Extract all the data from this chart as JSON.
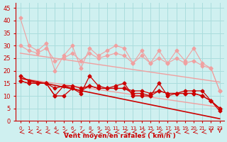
{
  "x": [
    0,
    1,
    2,
    3,
    4,
    5,
    6,
    7,
    8,
    9,
    10,
    11,
    12,
    13,
    14,
    15,
    16,
    17,
    18,
    19,
    20,
    21,
    22,
    23
  ],
  "line_light1": [
    41,
    30,
    28,
    31,
    20,
    26,
    30,
    21,
    29,
    26,
    28,
    30,
    29,
    23,
    28,
    23,
    28,
    23,
    28,
    24,
    29,
    23,
    21,
    12
  ],
  "line_light2": [
    30,
    28,
    27,
    29,
    24,
    25,
    27,
    24,
    27,
    25,
    26,
    27,
    26,
    23,
    26,
    23,
    25,
    23,
    25,
    23,
    24,
    22,
    21,
    12
  ],
  "line_light3_slope": [
    27,
    26.5,
    26,
    25.5,
    25,
    24.5,
    24,
    23.5,
    23,
    22.5,
    22,
    21.5,
    21,
    20.5,
    20,
    19.5,
    19,
    18.5,
    18,
    17.5,
    17,
    16.5,
    16,
    15.5
  ],
  "line_light4_slope": [
    17,
    16.5,
    16,
    15.5,
    15,
    14.5,
    14,
    13.5,
    13,
    12.5,
    12,
    11.5,
    11,
    10.5,
    10,
    9.5,
    9,
    8.5,
    8,
    7.5,
    7,
    6.5,
    6,
    5.5
  ],
  "line_dark1": [
    18,
    16,
    15,
    15,
    10,
    10,
    13,
    11,
    18,
    14,
    13,
    14,
    15,
    10,
    10,
    10,
    15,
    10,
    11,
    12,
    12,
    12,
    8,
    4
  ],
  "line_dark2": [
    16,
    15,
    15,
    15,
    10,
    14,
    13,
    12,
    14,
    13,
    13,
    13,
    13,
    11,
    11,
    10,
    12,
    11,
    11,
    11,
    11,
    10,
    8,
    5
  ],
  "line_dark3": [
    16,
    15,
    15,
    15,
    13,
    14,
    14,
    13,
    14,
    13,
    13,
    13,
    13,
    12,
    12,
    11,
    12,
    11,
    11,
    11,
    11,
    10,
    8,
    5
  ],
  "line_dark4_slope": [
    17,
    16.3,
    15.6,
    14.9,
    14.2,
    13.5,
    12.8,
    12.1,
    11.4,
    10.7,
    10.0,
    9.3,
    8.6,
    7.9,
    7.2,
    6.5,
    5.8,
    5.1,
    4.4,
    3.7,
    3.0,
    2.3,
    1.6,
    0.9
  ],
  "background_color": "#cff0f0",
  "grid_color": "#aadddd",
  "light_line_color": "#f0a0a0",
  "dark_line_color": "#cc0000",
  "arrow_color": "#cc0000",
  "xlabel": "Vent moyen/en rafales ( km/h )",
  "xlabel_color": "#cc0000",
  "tick_color": "#cc0000",
  "ylim": [
    0,
    47
  ],
  "xlim": [
    0,
    23
  ],
  "yticks": [
    0,
    5,
    10,
    15,
    20,
    25,
    30,
    35,
    40,
    45
  ]
}
